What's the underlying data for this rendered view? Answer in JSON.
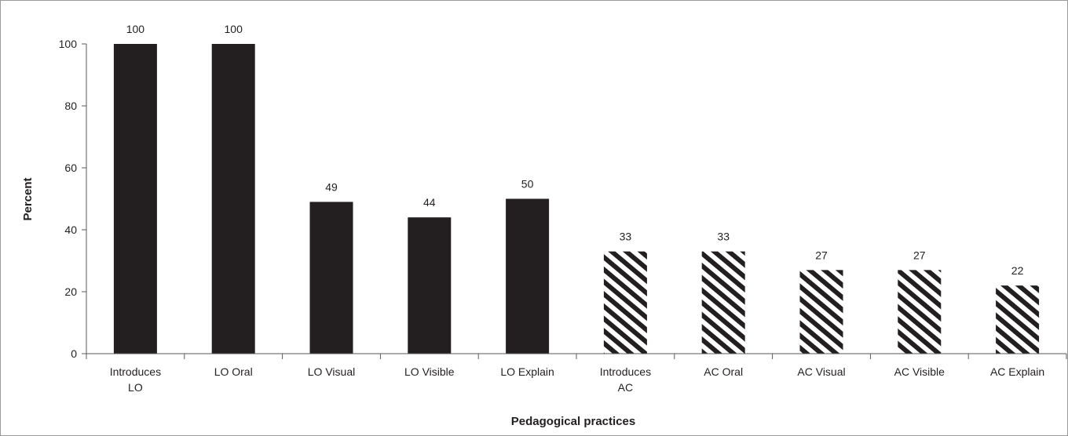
{
  "chart_data": {
    "type": "bar",
    "title": "",
    "xlabel": "Pedagogical practices",
    "ylabel": "Percent",
    "ylim": [
      0,
      100
    ],
    "yticks": [
      0,
      20,
      40,
      60,
      80,
      100
    ],
    "grid": false,
    "legend": "none",
    "categories": [
      [
        "Introduces",
        "LO"
      ],
      [
        "LO Oral"
      ],
      [
        "LO Visual"
      ],
      [
        "LO Visible"
      ],
      [
        "LO Explain"
      ],
      [
        "Introduces",
        "AC"
      ],
      [
        "AC Oral"
      ],
      [
        "AC Visual"
      ],
      [
        "AC Visible"
      ],
      [
        "AC Explain"
      ]
    ],
    "values": [
      100,
      100,
      49,
      44,
      50,
      33,
      33,
      27,
      27,
      22
    ],
    "value_labels": [
      "100",
      "100",
      "49",
      "44",
      "50",
      "33",
      "33",
      "27",
      "27",
      "22"
    ],
    "bar_fill": [
      "solid",
      "solid",
      "solid",
      "solid",
      "solid",
      "hatched",
      "hatched",
      "hatched",
      "hatched",
      "hatched"
    ],
    "colors": {
      "bar": "#231f20",
      "axis": "#595959",
      "text": "#231f20",
      "hatch_bg": "#ffffff"
    }
  }
}
